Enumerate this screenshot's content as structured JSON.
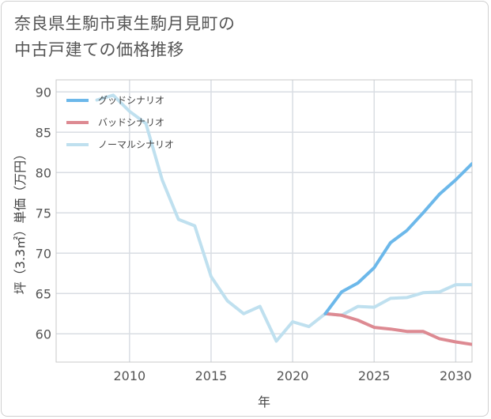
{
  "title": {
    "line1": "奈良県生駒市東生駒月見町の",
    "line2": "中古戸建ての価格推移"
  },
  "chart_data": {
    "type": "line",
    "xlabel": "年",
    "ylabel": "坪（3.3㎡）単価（万円）",
    "xlim": [
      2005.5,
      2031
    ],
    "ylim": [
      56.5,
      91.5
    ],
    "x_ticks": [
      2010,
      2015,
      2020,
      2025,
      2030
    ],
    "y_ticks": [
      60,
      65,
      70,
      75,
      80,
      85,
      90
    ],
    "grid": true,
    "legend_position": "top-left",
    "series": [
      {
        "name": "グッドシナリオ",
        "color": "#6cb8ea",
        "x": [
          2022,
          2023,
          2024,
          2025,
          2026,
          2027,
          2028,
          2029,
          2030,
          2031
        ],
        "y": [
          62.5,
          65.2,
          66.3,
          68.2,
          71.3,
          72.8,
          75.0,
          77.3,
          79.1,
          81.1
        ]
      },
      {
        "name": "バッドシナリオ",
        "color": "#dd8a92",
        "x": [
          2022,
          2023,
          2024,
          2025,
          2026,
          2027,
          2028,
          2029,
          2030,
          2031
        ],
        "y": [
          62.5,
          62.3,
          61.7,
          60.8,
          60.6,
          60.3,
          60.3,
          59.4,
          59.0,
          58.7
        ]
      },
      {
        "name": "ノーマルシナリオ",
        "color": "#bfe0ef",
        "x": [
          2008,
          2009,
          2010,
          2011,
          2012,
          2013,
          2014,
          2015,
          2016,
          2017,
          2018,
          2019,
          2020,
          2021,
          2022,
          2023,
          2024,
          2025,
          2026,
          2027,
          2028,
          2029,
          2030,
          2031
        ],
        "y": [
          89.0,
          89.6,
          87.6,
          86.1,
          79.1,
          74.2,
          73.4,
          67.1,
          64.1,
          62.5,
          63.4,
          59.1,
          61.5,
          60.9,
          62.5,
          62.3,
          63.4,
          63.3,
          64.4,
          64.5,
          65.1,
          65.2,
          66.1,
          66.1
        ]
      }
    ]
  }
}
